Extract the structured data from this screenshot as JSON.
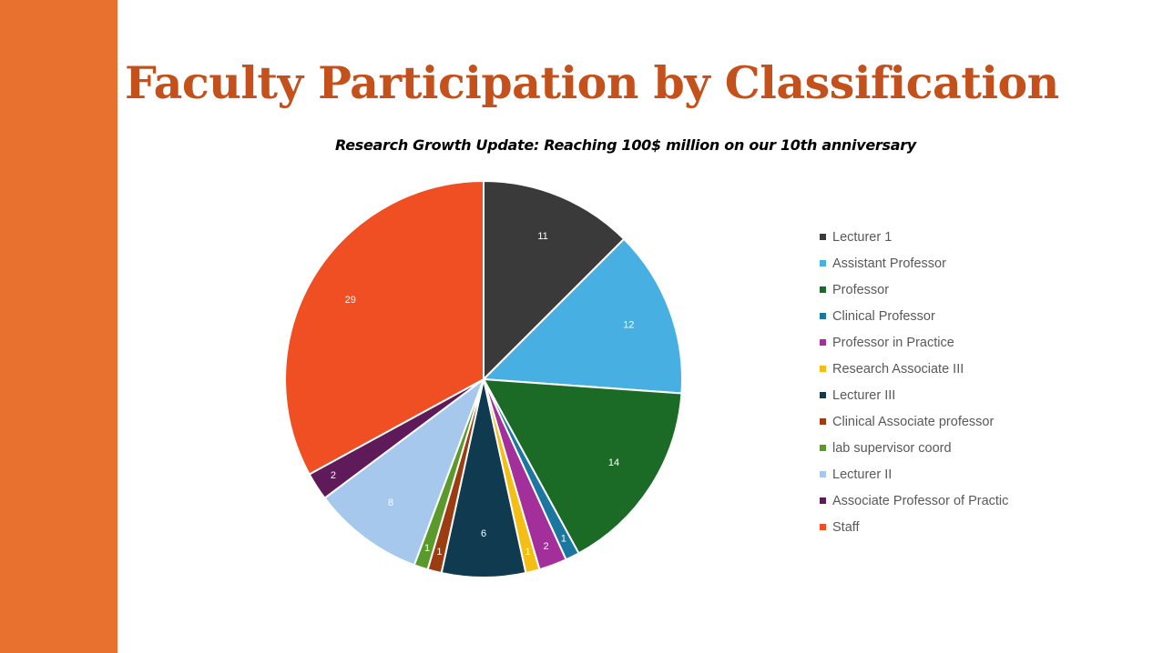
{
  "slide": {
    "title": "Faculty Participation by Classification",
    "accent_color": "#E8712F",
    "title_color": "#C4501B"
  },
  "chart_data": {
    "type": "pie",
    "subtitle": "Research Growth Update: Reaching 100$ million on our 10th anniversary",
    "legend_position": "right",
    "slices": [
      {
        "label": "Lecturer 1",
        "value": 11,
        "color": "#3A3A3A"
      },
      {
        "label": "Assistant Professor",
        "value": 12,
        "color": "#48AFE2"
      },
      {
        "label": "Professor",
        "value": 14,
        "color": "#1B6B27"
      },
      {
        "label": "Clinical Professor",
        "value": 1,
        "color": "#1B76A0"
      },
      {
        "label": "Professor in Practice",
        "value": 2,
        "color": "#A3309A"
      },
      {
        "label": "Research Associate III",
        "value": 1,
        "color": "#F4BE14"
      },
      {
        "label": "Lecturer III",
        "value": 6,
        "color": "#0F3A50"
      },
      {
        "label": "Clinical Associate professor",
        "value": 1,
        "color": "#9C3D11"
      },
      {
        "label": "lab supervisor coord",
        "value": 1,
        "color": "#5A9A2D"
      },
      {
        "label": "Lecturer II",
        "value": 8,
        "color": "#A5C8EC"
      },
      {
        "label": "Associate Professor of Practic",
        "value": 2,
        "color": "#5E1A59"
      },
      {
        "label": "Staff",
        "value": 29,
        "color": "#F04F23"
      }
    ]
  }
}
